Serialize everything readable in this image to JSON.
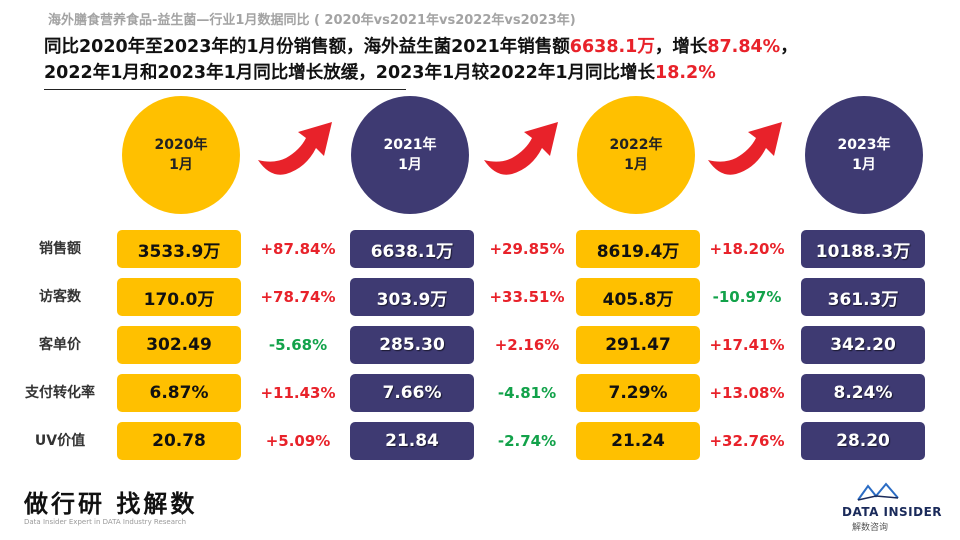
{
  "title": "海外膳食营养食品-益生菌—行业1月数据同比  ( 2020年vs2021年vs2022年vs2023年)",
  "headline": {
    "line1_a": "同比2020年至2023年的1月份销售额，海外益生菌2021年销售额",
    "line1_b": "6638.1万",
    "line1_c": "，增长",
    "line1_d": "87.84%",
    "line1_e": "，",
    "line2_a": "2022年1月和2023年1月同比增长放缓，2023年1月较2022年1月同比增长",
    "line2_b": "18.2%"
  },
  "periods": [
    {
      "line1": "2020年",
      "line2": "1月",
      "color": "yellow"
    },
    {
      "line1": "2021年",
      "line2": "1月",
      "color": "navy"
    },
    {
      "line1": "2022年",
      "line2": "1月",
      "color": "yellow"
    },
    {
      "line1": "2023年",
      "line2": "1月",
      "color": "navy"
    }
  ],
  "rows": [
    {
      "label": "销售额",
      "values": [
        "3533.9万",
        "6638.1万",
        "8619.4万",
        "10188.3万"
      ],
      "changes": [
        "+87.84%",
        "+29.85%",
        "+18.20%"
      ]
    },
    {
      "label": "访客数",
      "values": [
        "170.0万",
        "303.9万",
        "405.8万",
        "361.3万"
      ],
      "changes": [
        "+78.74%",
        "+33.51%",
        "-10.97%"
      ]
    },
    {
      "label": "客单价",
      "values": [
        "302.49",
        "285.30",
        "291.47",
        "342.20"
      ],
      "changes": [
        "-5.68%",
        "+2.16%",
        "+17.41%"
      ]
    },
    {
      "label": "支付转化率",
      "values": [
        "6.87%",
        "7.66%",
        "7.29%",
        "8.24%"
      ],
      "changes": [
        "+11.43%",
        "-4.81%",
        "+13.08%"
      ]
    },
    {
      "label": "UV价值",
      "values": [
        "20.78",
        "21.84",
        "21.24",
        "28.20"
      ],
      "changes": [
        "+5.09%",
        "-2.74%",
        "+32.76%"
      ]
    }
  ],
  "footer": {
    "brand": "做行研 找解数",
    "brand_sub": "Data Insider Expert in DATA Industry Research",
    "logo_text": "DATA INSIDER",
    "logo_sub": "解数咨询"
  },
  "colors": {
    "yellow": "#ffc000",
    "navy": "#3e3a72",
    "increase": "#e8222a",
    "decrease": "#12a24a",
    "arrow": "#e8222a"
  },
  "icons": {
    "arrow": "curved-up-right-arrow",
    "logo": "data-insider-logo"
  }
}
